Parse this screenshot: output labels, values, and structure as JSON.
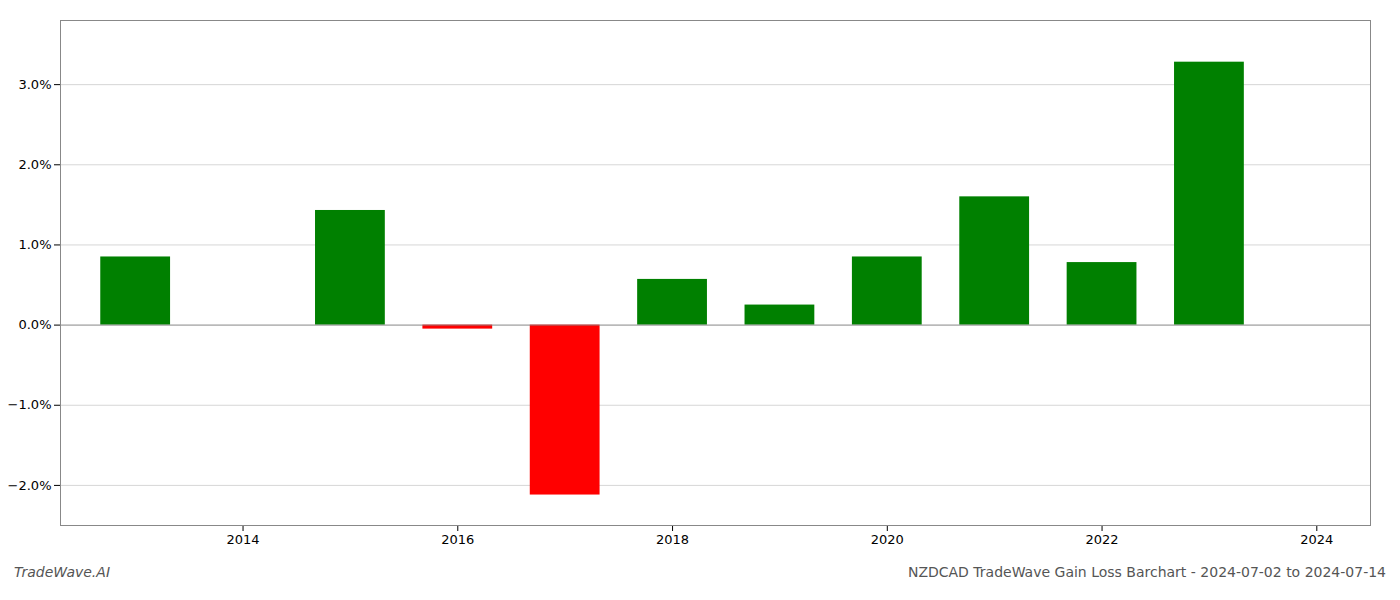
{
  "chart_data": {
    "type": "bar",
    "categories": [
      2013,
      2015,
      2016,
      2017,
      2018,
      2019,
      2020,
      2021,
      2022,
      2023
    ],
    "values": [
      0.0085,
      0.0143,
      -0.0005,
      -0.0212,
      0.0057,
      0.0025,
      0.0085,
      0.016,
      0.0078,
      0.0328
    ],
    "colors": [
      "#008000",
      "#008000",
      "#ff0000",
      "#ff0000",
      "#008000",
      "#008000",
      "#008000",
      "#008000",
      "#008000",
      "#008000"
    ],
    "xlim": [
      2012.3,
      2024.5
    ],
    "xticks": [
      2014,
      2016,
      2018,
      2020,
      2022,
      2024
    ],
    "ylim": [
      -0.025,
      0.038
    ],
    "yticks": [
      {
        "value": -0.02,
        "label": "−2.0%"
      },
      {
        "value": -0.01,
        "label": "−1.0%"
      },
      {
        "value": 0.0,
        "label": "0.0%"
      },
      {
        "value": 0.01,
        "label": "1.0%"
      },
      {
        "value": 0.02,
        "label": "2.0%"
      },
      {
        "value": 0.03,
        "label": "3.0%"
      }
    ],
    "grid": "y",
    "annotations": [
      "TradeWave.AI",
      "NZDCAD TradeWave Gain Loss Barchart - 2024-07-02 to 2024-07-14"
    ]
  }
}
